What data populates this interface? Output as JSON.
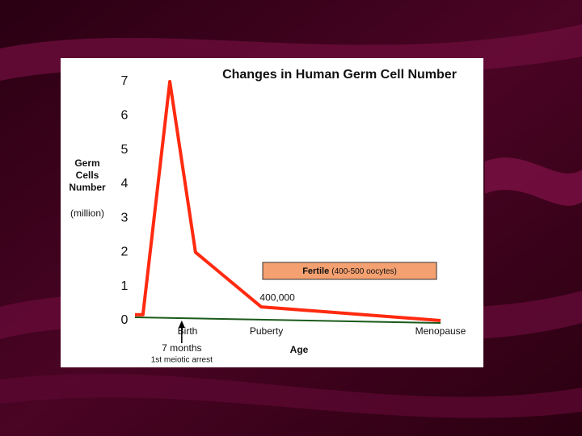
{
  "chart_data": {
    "type": "line",
    "title": "Changes in Human Germ Cell Number",
    "y_label": [
      "Germ",
      "Cells",
      "Number"
    ],
    "y_unit": "(million)",
    "x_label": "Age",
    "x": [
      0,
      2.6,
      11.4,
      19.8,
      41.3,
      100
    ],
    "xlim": [
      0,
      100
    ],
    "series": [
      {
        "color": "#ff2a10",
        "values": [
          0.17,
          0.17,
          7,
          2,
          0.4,
          0
        ],
        "value_labels": [
          null,
          null,
          null,
          null,
          "400,000",
          null
        ]
      }
    ],
    "ylim": [
      0,
      7
    ],
    "yticks": [
      0,
      1,
      2,
      3,
      4,
      5,
      6,
      7
    ],
    "x_markers": [
      {
        "label": "Birth",
        "x": 17.2
      },
      {
        "label": "Puberty",
        "x": 43
      },
      {
        "label": "Menopause",
        "x": 100
      }
    ],
    "arrow": {
      "label": "7 months",
      "detail": "1st meiotic arrest",
      "x": 15.3
    },
    "fertile": {
      "label": "Fertile",
      "detail": "(400-500 oocytes)",
      "x_range": [
        41.8,
        98.7
      ]
    }
  }
}
